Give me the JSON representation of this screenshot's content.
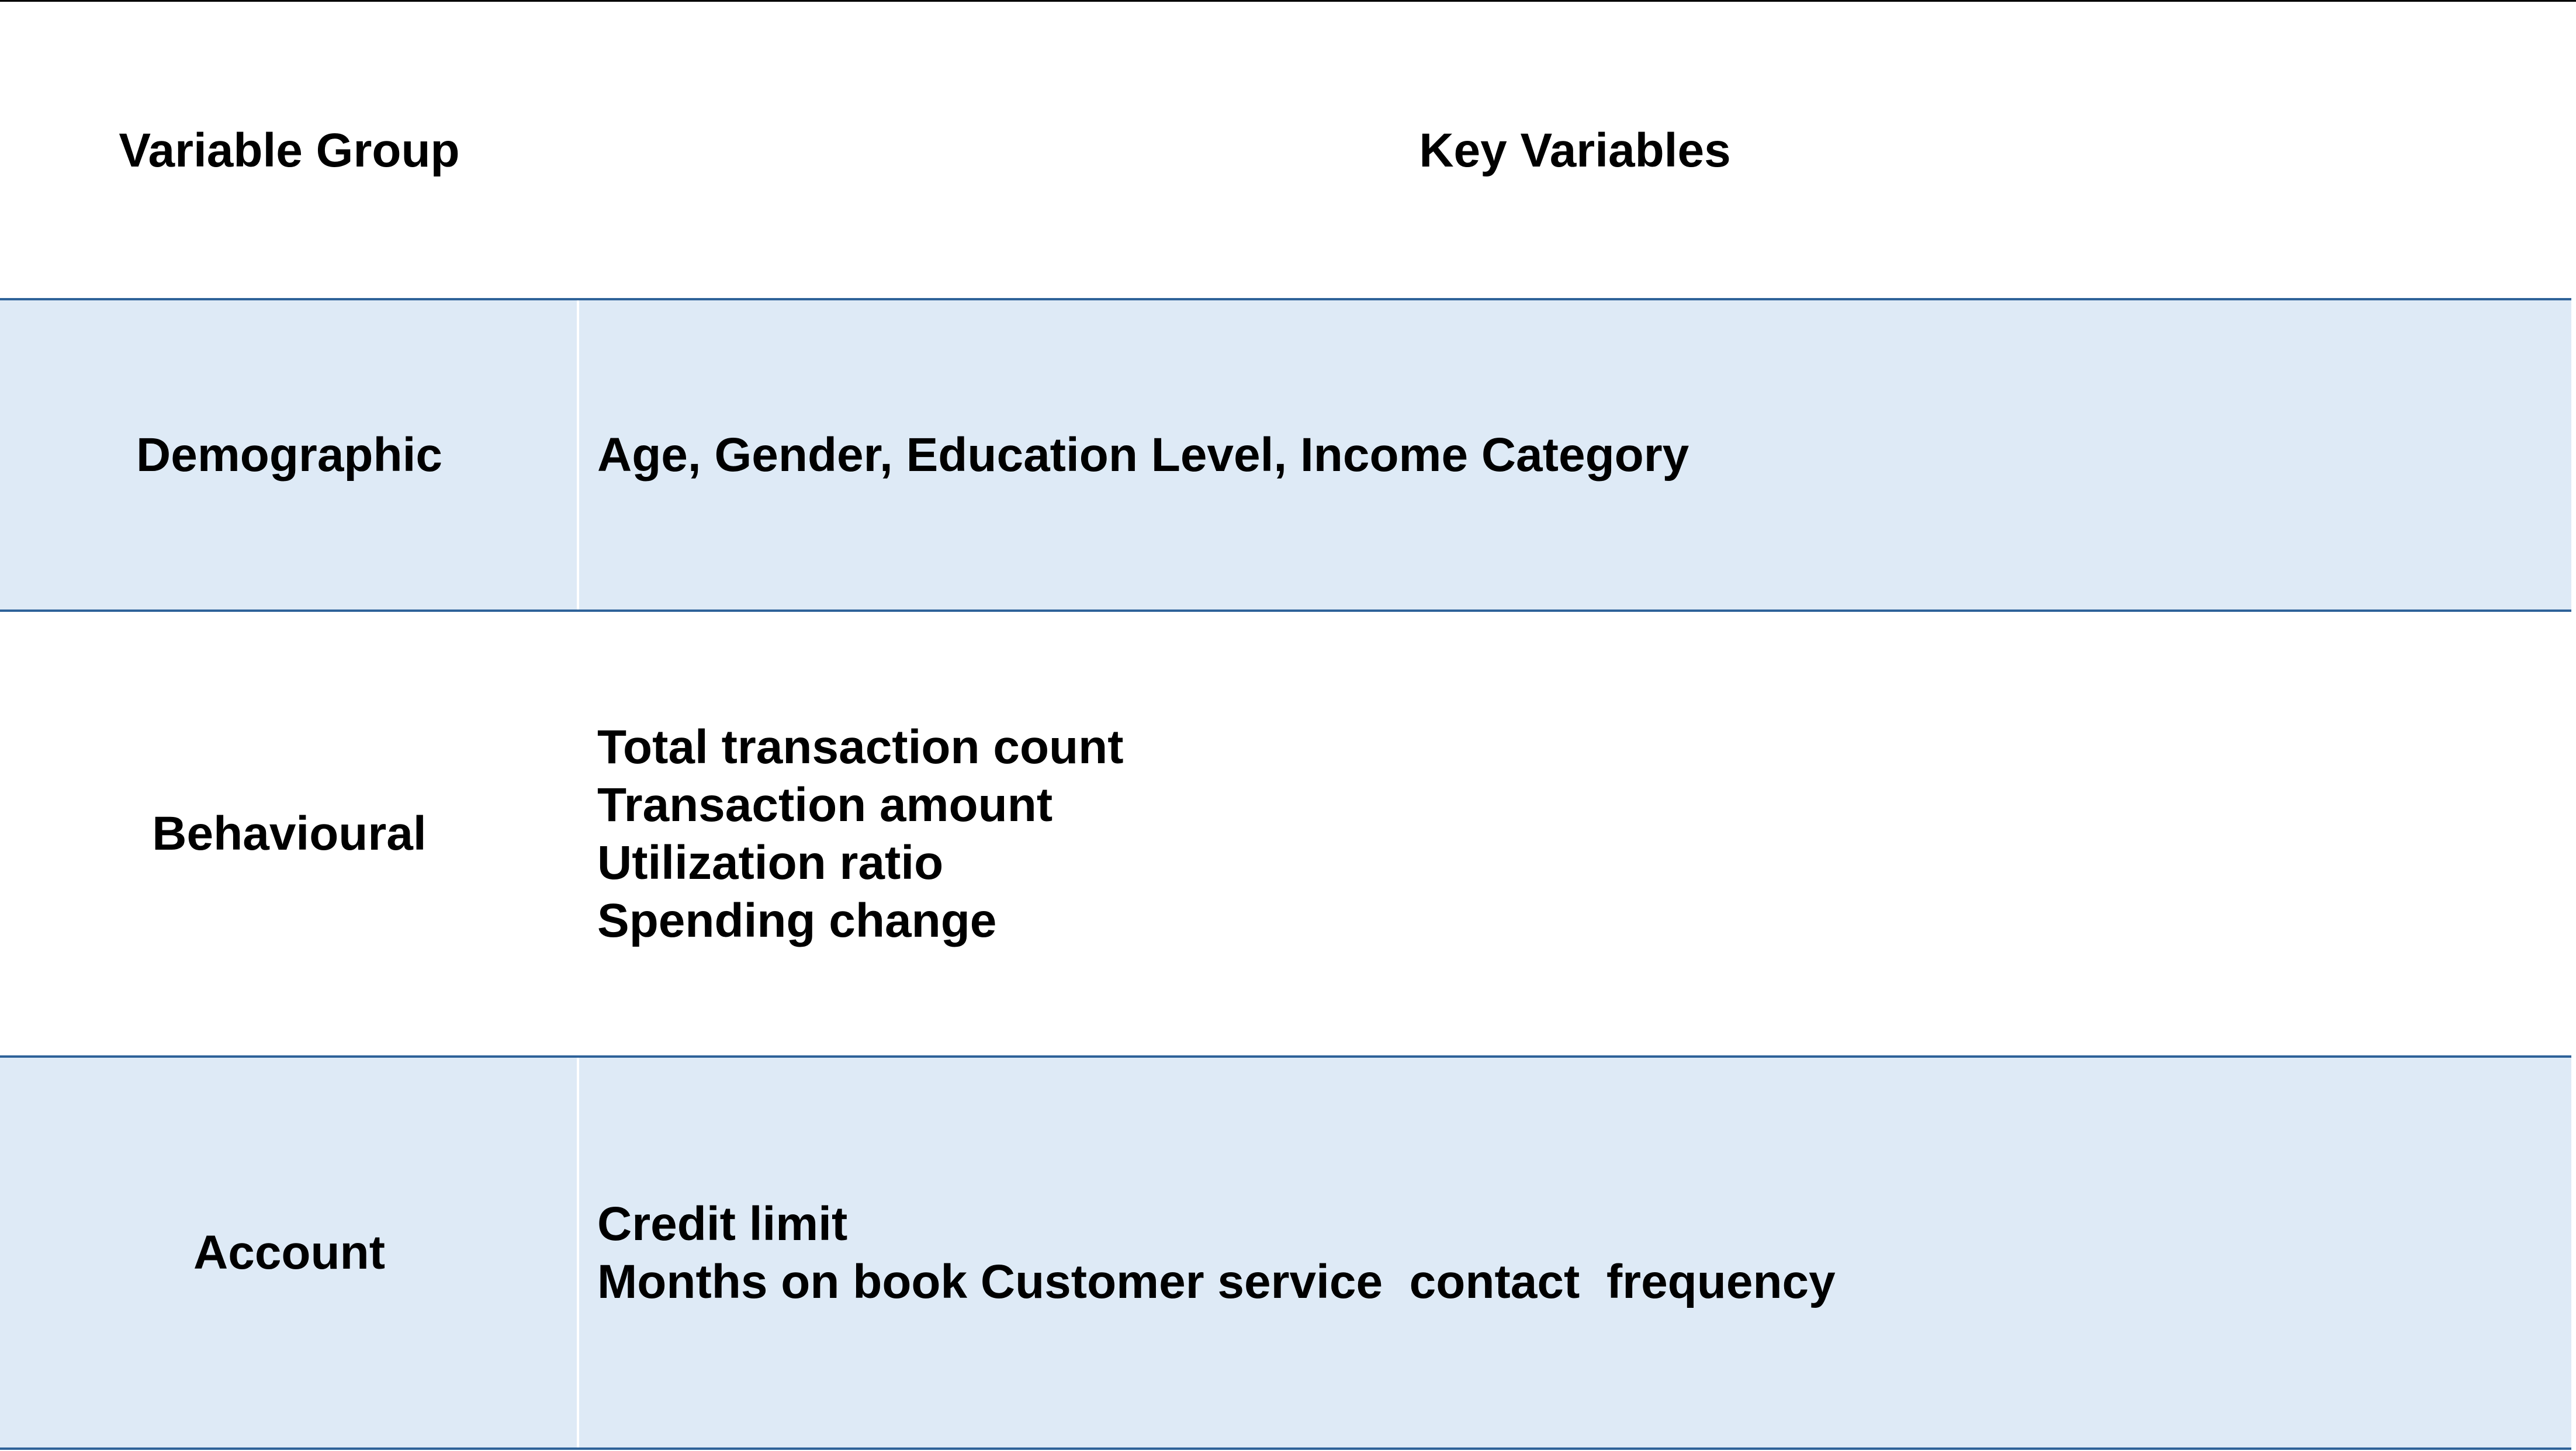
{
  "colors": {
    "row_shade": "#deeaf6",
    "border": "#2e6299",
    "text": "#000000"
  },
  "table": {
    "headers": {
      "group": "Variable Group",
      "variables": "Key Variables"
    },
    "rows": [
      {
        "group": "Demographic",
        "variables": [
          "Age, Gender, Education Level, Income Category"
        ]
      },
      {
        "group": "Behavioural",
        "variables": [
          "Total transaction count",
          "Transaction amount",
          "Utilization ratio",
          "Spending change"
        ]
      },
      {
        "group": "Account",
        "variables": [
          "Credit limit",
          "Months on book Customer service  contact  frequency"
        ]
      }
    ]
  }
}
